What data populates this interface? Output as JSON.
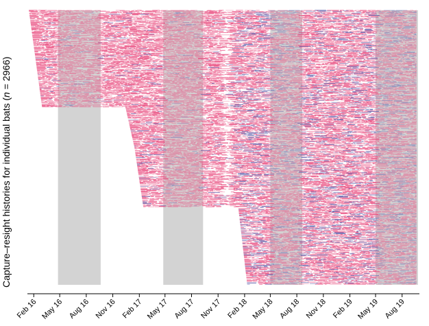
{
  "chart_data": {
    "type": "heatmap",
    "title": "",
    "ylabel_prefix": "Capture–resight histories for individual bats (",
    "ylabel_n": "n",
    "ylabel_suffix": " = 2966)",
    "n_individuals": 2966,
    "x_axis": {
      "type": "date",
      "range": [
        "2016-01-10",
        "2019-09-30"
      ],
      "ticks": [
        {
          "date": "2016-02-01",
          "label": "Feb 16"
        },
        {
          "date": "2016-05-01",
          "label": "May 16"
        },
        {
          "date": "2016-08-01",
          "label": "Aug 16"
        },
        {
          "date": "2016-11-01",
          "label": "Nov 16"
        },
        {
          "date": "2017-02-01",
          "label": "Feb 17"
        },
        {
          "date": "2017-05-01",
          "label": "May 17"
        },
        {
          "date": "2017-08-01",
          "label": "Aug 17"
        },
        {
          "date": "2017-11-01",
          "label": "Nov 17"
        },
        {
          "date": "2018-02-01",
          "label": "Feb 18"
        },
        {
          "date": "2018-05-01",
          "label": "May 18"
        },
        {
          "date": "2018-08-01",
          "label": "Aug 18"
        },
        {
          "date": "2018-11-01",
          "label": "Nov 18"
        },
        {
          "date": "2019-02-01",
          "label": "Feb 19"
        },
        {
          "date": "2019-05-01",
          "label": "May 19"
        },
        {
          "date": "2019-08-01",
          "label": "Aug 19"
        }
      ]
    },
    "gray_periods": [
      {
        "start": "2016-04-25",
        "end": "2016-09-20"
      },
      {
        "start": "2017-04-25",
        "end": "2017-09-10"
      },
      {
        "start": "2018-05-01",
        "end": "2018-08-20"
      },
      {
        "start": "2019-05-01",
        "end": "2019-09-25"
      }
    ],
    "gap_periods": [
      {
        "start": "2017-11-25",
        "end": "2017-12-10"
      }
    ],
    "cohorts": [
      {
        "row_start": 0,
        "row_end": 1050,
        "release": "2016-01-15",
        "release_end": "2016-03-01",
        "obs_end": "2019-09-20"
      },
      {
        "row_start": 1050,
        "row_end": 1480,
        "release": "2016-12-15",
        "release_end": "2017-01-15",
        "obs_end": "2019-09-20"
      },
      {
        "row_start": 1480,
        "row_end": 2130,
        "release": "2017-01-15",
        "release_end": "2017-02-15",
        "obs_end": "2019-09-20"
      },
      {
        "row_start": 2130,
        "row_end": 2966,
        "release": "2018-01-10",
        "release_end": "2018-02-10",
        "obs_end": "2019-09-20"
      }
    ],
    "legend": [],
    "colors": {
      "background": "#ffffff",
      "gray": "#d3d3d3",
      "pink": "#e8457a",
      "blue": "#5a5aa8",
      "axis": "#000000"
    },
    "grid": false
  }
}
